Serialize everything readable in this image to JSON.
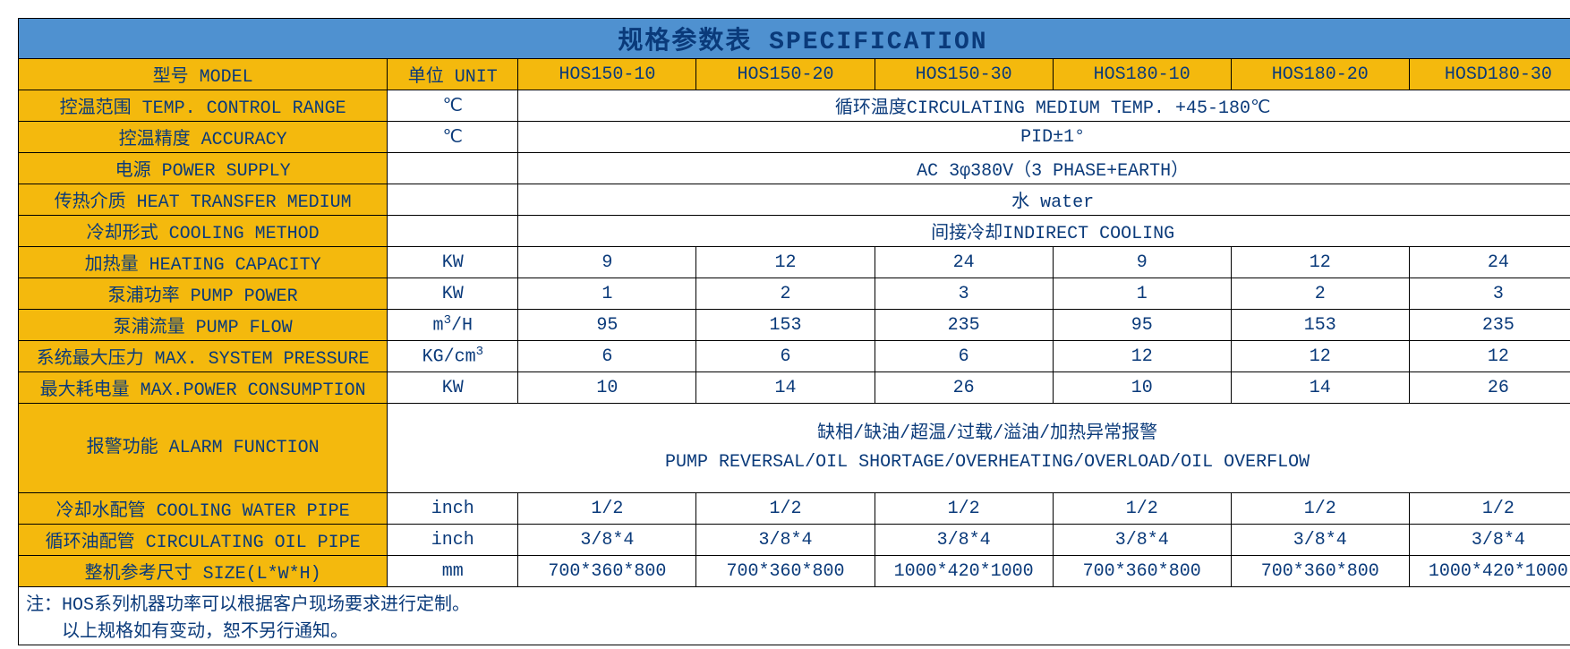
{
  "title": "规格参数表 SPECIFICATION",
  "colors": {
    "title_bg": "#4f91d0",
    "header_bg": "#f4b90d",
    "text": "#0a3a7a",
    "border": "#000000"
  },
  "header": {
    "model": "型号 MODEL",
    "unit": "单位 UNIT",
    "models": [
      "HOS150-10",
      "HOS150-20",
      "HOS150-30",
      "HOS180-10",
      "HOS180-20",
      "HOSD180-30"
    ]
  },
  "rows": {
    "temp_range": {
      "label": "控温范围 TEMP. CONTROL RANGE",
      "unit": "℃",
      "span": "循环温度CIRCULATING MEDIUM TEMP. +45-180℃"
    },
    "accuracy": {
      "label": "控温精度 ACCURACY",
      "unit": "℃",
      "span": "PID±1°"
    },
    "power_supply": {
      "label": "电源 POWER SUPPLY",
      "unit": "",
      "span": "AC 3φ380V（3 PHASE+EARTH）"
    },
    "medium": {
      "label": "传热介质 HEAT TRANSFER MEDIUM",
      "unit": "",
      "span": "水 water"
    },
    "cooling": {
      "label": "冷却形式 COOLING METHOD",
      "unit": "",
      "span": "间接冷却INDIRECT COOLING"
    },
    "heating_cap": {
      "label": "加热量 HEATING CAPACITY",
      "unit": "KW",
      "vals": [
        "9",
        "12",
        "24",
        "9",
        "12",
        "24"
      ]
    },
    "pump_power": {
      "label": "泵浦功率 PUMP POWER",
      "unit": "KW",
      "vals": [
        "1",
        "2",
        "3",
        "1",
        "2",
        "3"
      ]
    },
    "pump_flow": {
      "label": "泵浦流量 PUMP FLOW",
      "unit_html": "m³/H",
      "vals": [
        "95",
        "153",
        "235",
        "95",
        "153",
        "235"
      ]
    },
    "max_pressure": {
      "label": "系统最大压力 MAX. SYSTEM PRESSURE",
      "unit_html": "KG/cm³",
      "vals": [
        "6",
        "6",
        "6",
        "12",
        "12",
        "12"
      ]
    },
    "max_power": {
      "label": "最大耗电量  MAX.POWER CONSUMPTION",
      "unit": "KW",
      "vals": [
        "10",
        "14",
        "26",
        "10",
        "14",
        "26"
      ]
    },
    "alarm": {
      "label": "报警功能 ALARM FUNCTION",
      "unit": "",
      "span_lines": [
        "缺相/缺油/超温/过载/溢油/加热异常报警",
        "PUMP REVERSAL/OIL SHORTAGE/OVERHEATING/OVERLOAD/OIL OVERFLOW"
      ]
    },
    "cool_pipe": {
      "label": "冷却水配管 COOLING WATER PIPE",
      "unit": "inch",
      "vals": [
        "1/2",
        "1/2",
        "1/2",
        "1/2",
        "1/2",
        "1/2"
      ]
    },
    "oil_pipe": {
      "label": "循环油配管 CIRCULATING OIL PIPE",
      "unit": "inch",
      "vals": [
        "3/8*4",
        "3/8*4",
        "3/8*4",
        "3/8*4",
        "3/8*4",
        "3/8*4"
      ]
    },
    "size": {
      "label": "整机参考尺寸 SIZE(L*W*H)",
      "unit": "mm",
      "vals": [
        "700*360*800",
        "700*360*800",
        "1000*420*1000",
        "700*360*800",
        "700*360*800",
        "1000*420*1000"
      ]
    }
  },
  "notes": [
    "注：HOS系列机器功率可以根据客户现场要求进行定制。",
    "　　以上规格如有变动，恕不另行通知。"
  ]
}
